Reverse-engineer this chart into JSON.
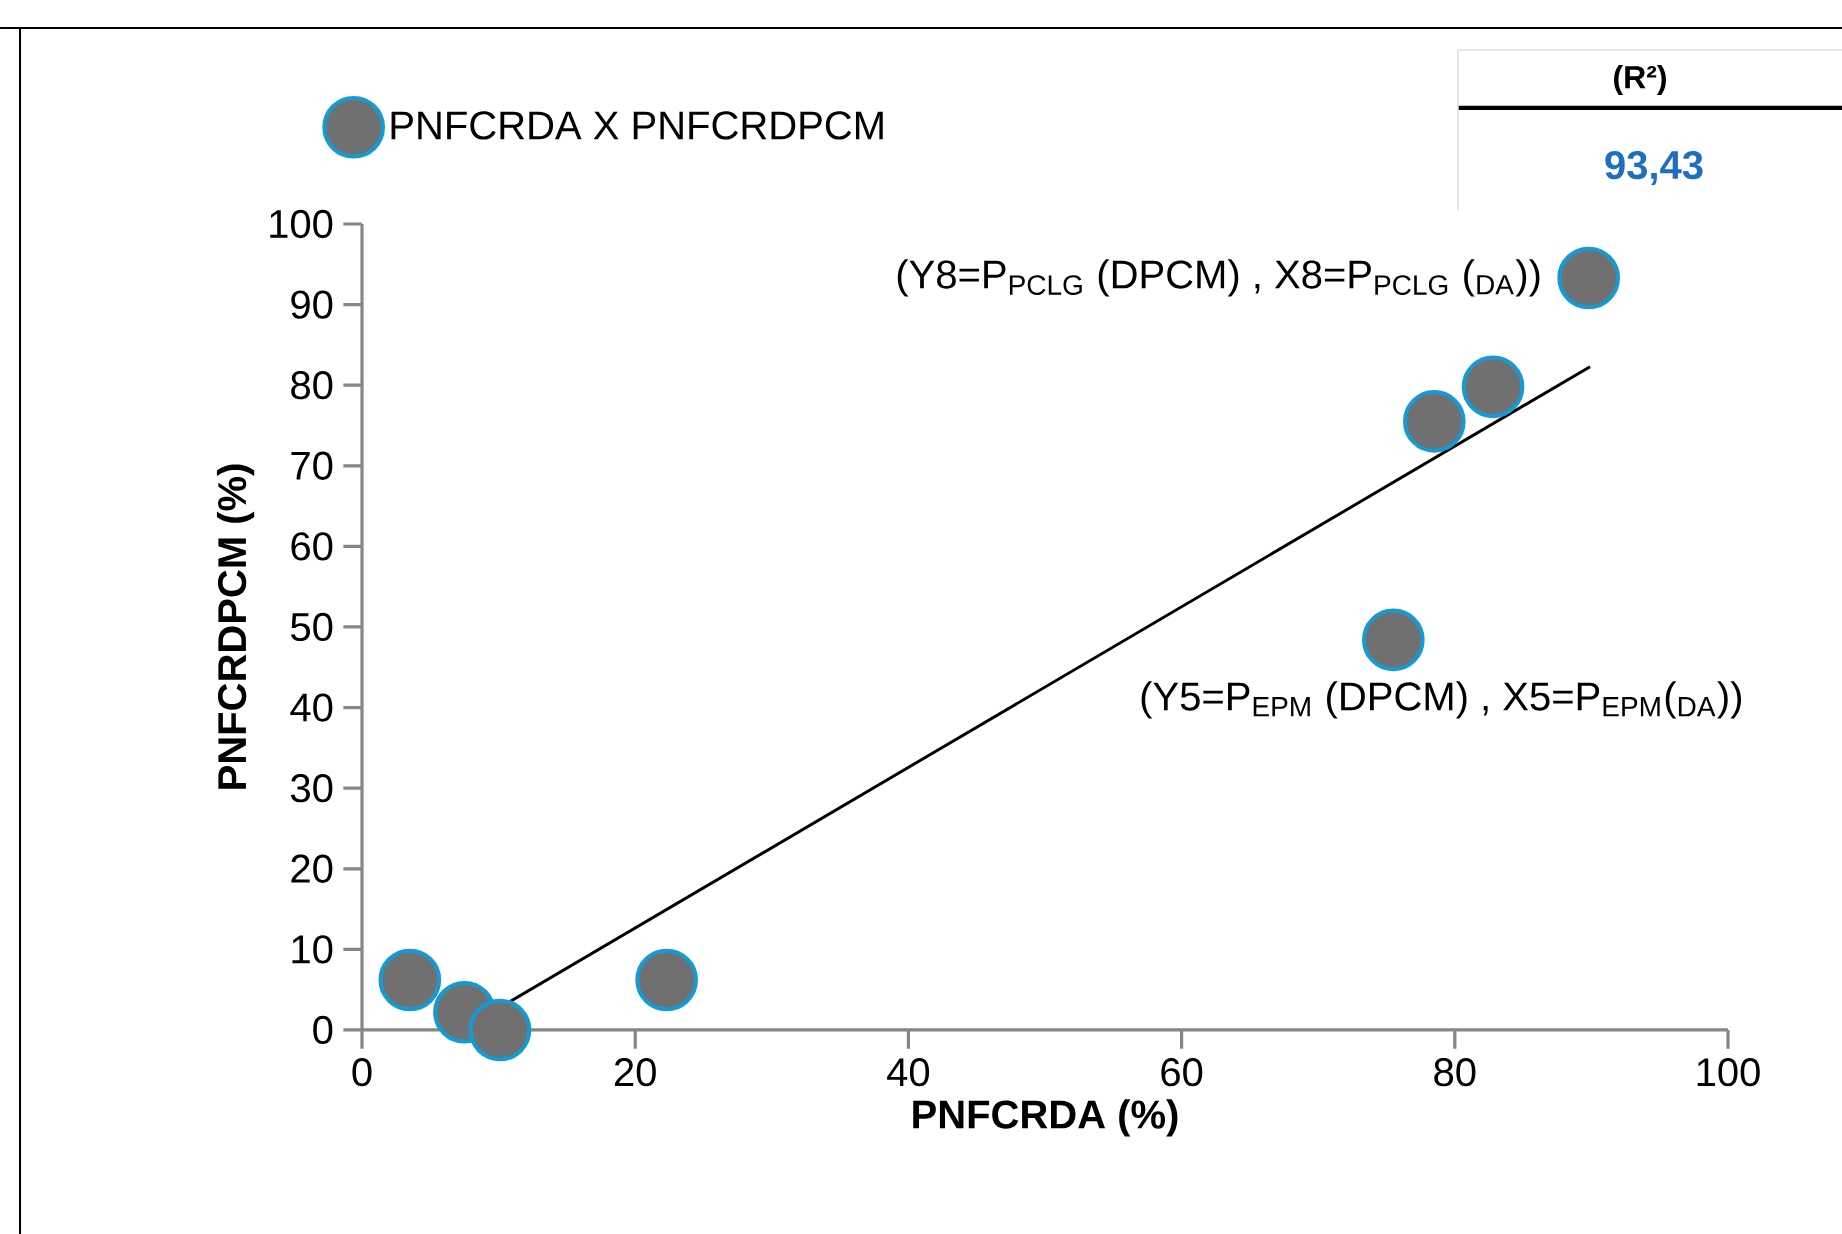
{
  "chart_data": {
    "type": "scatter",
    "xlabel": "PNFCRDA (%)",
    "ylabel": "PNFCRDPCM (%)",
    "xlim": [
      0,
      100
    ],
    "ylim": [
      0,
      100
    ],
    "xticks": [
      0,
      20,
      40,
      60,
      80,
      100
    ],
    "yticks": [
      0,
      10,
      20,
      30,
      40,
      50,
      60,
      70,
      80,
      90,
      100
    ],
    "grid": false,
    "legend": "top",
    "series": [
      {
        "name": "PNFCRDA X PNFCRDPCM",
        "type": "scatter",
        "marker": "circle",
        "color": "#707070",
        "x": [
          3.5,
          7.5,
          10.1,
          22.3,
          75.5,
          78.5,
          82.8,
          89.8
        ],
        "values": [
          6.2,
          2.2,
          0,
          6.2,
          48.4,
          75.5,
          79.8,
          93.3
        ]
      },
      {
        "type": "line",
        "marker": "none",
        "color": "#000000",
        "x": [
          7.3,
          89.9
        ],
        "values": [
          0,
          82.3
        ]
      }
    ],
    "annotations": [
      "(R²)",
      "93,43",
      {
        "text": "(Y8=P$_{PCLG}$ (DPCM) , X8=P$_{PCLG}$ ($_{DA}$))",
        "x": 89.8,
        "y": 93.3
      },
      {
        "text": "(Y5=P$_{EPM}$ (DPCM) , X5=P$_{EPM}$($_{DA}$))",
        "x": 75.5,
        "y": 48.4
      }
    ]
  }
}
